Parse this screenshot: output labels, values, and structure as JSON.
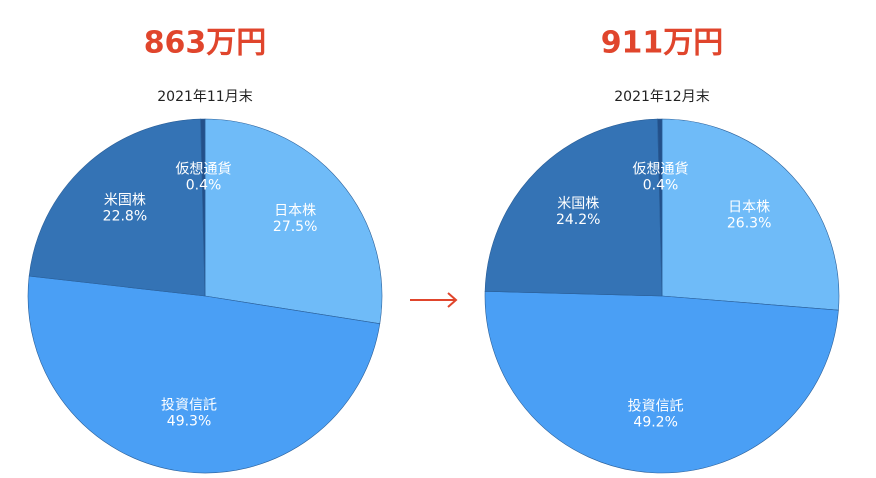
{
  "chart_data": [
    {
      "type": "pie",
      "total": "863万円",
      "title": "2021年11月末",
      "categories": [
        "日本株",
        "投資信託",
        "米国株",
        "仮想通貨"
      ],
      "values": [
        27.5,
        49.3,
        22.8,
        0.4
      ],
      "value_labels": [
        "27.5%",
        "49.3%",
        "22.8%",
        "0.4%"
      ],
      "colors": [
        "#6fbbf8",
        "#4a9ff5",
        "#3473b5",
        "#23508a"
      ]
    },
    {
      "type": "pie",
      "total": "911万円",
      "title": "2021年12月末",
      "categories": [
        "日本株",
        "投資信託",
        "米国株",
        "仮想通貨"
      ],
      "values": [
        26.3,
        49.2,
        24.2,
        0.4
      ],
      "value_labels": [
        "26.3%",
        "49.2%",
        "24.2%",
        "0.4%"
      ],
      "colors": [
        "#6fbbf8",
        "#4a9ff5",
        "#3473b5",
        "#23508a"
      ]
    }
  ]
}
